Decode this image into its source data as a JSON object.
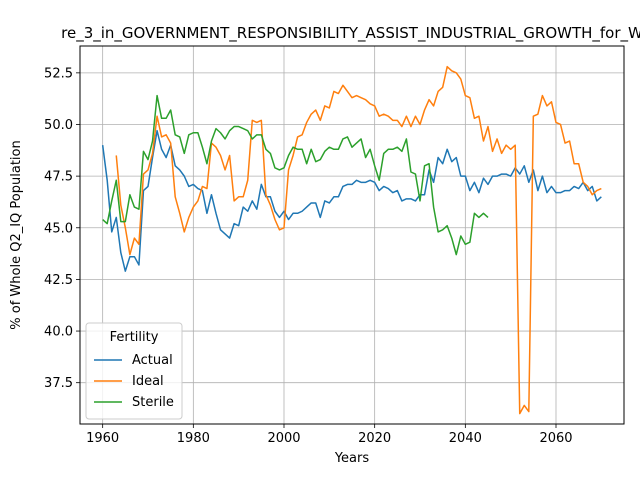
{
  "chart_data": {
    "type": "line",
    "title": "re_3_in_GOVERNMENT_RESPONSIBILITY_ASSIST_INDUSTRIAL_GROWTH_for_W",
    "xlabel": "Years",
    "ylabel": "% of Whole Q2_IQ Population",
    "xlim": [
      1955,
      2075
    ],
    "ylim": [
      35.5,
      53.8
    ],
    "xticks": [
      "1960",
      "1980",
      "2000",
      "2020",
      "2040",
      "2060"
    ],
    "yticks": [
      "37.5",
      "40.0",
      "42.5",
      "45.0",
      "47.5",
      "50.0",
      "52.5"
    ],
    "grid": true,
    "legend": {
      "title": "Fertility",
      "placement": "lower-left"
    },
    "series": [
      {
        "name": "Actual",
        "color": "#1f77b4",
        "points": [
          [
            1960,
            49.0
          ],
          [
            1961,
            47.3
          ],
          [
            1962,
            44.8
          ],
          [
            1963,
            45.5
          ],
          [
            1964,
            43.8
          ],
          [
            1965,
            42.9
          ],
          [
            1966,
            43.6
          ],
          [
            1967,
            43.6
          ],
          [
            1968,
            43.2
          ],
          [
            1969,
            46.8
          ],
          [
            1970,
            47.0
          ],
          [
            1971,
            48.4
          ],
          [
            1972,
            49.7
          ],
          [
            1973,
            48.8
          ],
          [
            1974,
            48.4
          ],
          [
            1975,
            49.0
          ],
          [
            1976,
            48.0
          ],
          [
            1977,
            47.8
          ],
          [
            1978,
            47.5
          ],
          [
            1979,
            47.0
          ],
          [
            1980,
            47.1
          ],
          [
            1981,
            46.9
          ],
          [
            1982,
            46.8
          ],
          [
            1983,
            45.7
          ],
          [
            1984,
            46.6
          ],
          [
            1985,
            45.7
          ],
          [
            1986,
            44.9
          ],
          [
            1987,
            44.7
          ],
          [
            1988,
            44.5
          ],
          [
            1989,
            45.2
          ],
          [
            1990,
            45.1
          ],
          [
            1991,
            46.0
          ],
          [
            1992,
            45.8
          ],
          [
            1993,
            46.3
          ],
          [
            1994,
            45.9
          ],
          [
            1995,
            47.1
          ],
          [
            1996,
            46.5
          ],
          [
            1997,
            46.5
          ],
          [
            1998,
            45.8
          ],
          [
            1999,
            45.5
          ],
          [
            2000,
            45.8
          ],
          [
            2001,
            45.4
          ],
          [
            2002,
            45.7
          ],
          [
            2003,
            45.7
          ],
          [
            2004,
            45.8
          ],
          [
            2005,
            46.0
          ],
          [
            2006,
            46.2
          ],
          [
            2007,
            46.2
          ],
          [
            2008,
            45.5
          ],
          [
            2009,
            46.3
          ],
          [
            2010,
            46.2
          ],
          [
            2011,
            46.5
          ],
          [
            2012,
            46.5
          ],
          [
            2013,
            47.0
          ],
          [
            2014,
            47.1
          ],
          [
            2015,
            47.1
          ],
          [
            2016,
            47.3
          ],
          [
            2017,
            47.2
          ],
          [
            2018,
            47.2
          ],
          [
            2019,
            47.3
          ],
          [
            2020,
            47.2
          ],
          [
            2021,
            46.8
          ],
          [
            2022,
            47.0
          ],
          [
            2023,
            46.9
          ],
          [
            2024,
            46.7
          ],
          [
            2025,
            46.8
          ],
          [
            2026,
            46.3
          ],
          [
            2027,
            46.4
          ],
          [
            2028,
            46.4
          ],
          [
            2029,
            46.3
          ],
          [
            2030,
            46.6
          ],
          [
            2031,
            46.6
          ],
          [
            2032,
            47.8
          ],
          [
            2033,
            47.2
          ],
          [
            2034,
            48.4
          ],
          [
            2035,
            48.1
          ],
          [
            2036,
            48.8
          ],
          [
            2037,
            48.2
          ],
          [
            2038,
            48.4
          ],
          [
            2039,
            47.5
          ],
          [
            2040,
            47.5
          ],
          [
            2041,
            46.8
          ],
          [
            2042,
            47.2
          ],
          [
            2043,
            46.7
          ],
          [
            2044,
            47.4
          ],
          [
            2045,
            47.1
          ],
          [
            2046,
            47.5
          ],
          [
            2047,
            47.5
          ],
          [
            2048,
            47.6
          ],
          [
            2049,
            47.6
          ],
          [
            2050,
            47.5
          ],
          [
            2051,
            47.9
          ],
          [
            2052,
            47.6
          ],
          [
            2053,
            48.0
          ],
          [
            2054,
            47.2
          ],
          [
            2055,
            47.8
          ],
          [
            2056,
            46.8
          ],
          [
            2057,
            47.5
          ],
          [
            2058,
            46.7
          ],
          [
            2059,
            47.0
          ],
          [
            2060,
            46.7
          ],
          [
            2061,
            46.7
          ],
          [
            2062,
            46.8
          ],
          [
            2063,
            46.8
          ],
          [
            2064,
            47.0
          ],
          [
            2065,
            46.9
          ],
          [
            2066,
            47.2
          ],
          [
            2067,
            46.8
          ],
          [
            2068,
            47.0
          ],
          [
            2069,
            46.3
          ],
          [
            2070,
            46.5
          ]
        ]
      },
      {
        "name": "Ideal",
        "color": "#ff7f0e",
        "points": [
          [
            1963,
            48.5
          ],
          [
            1964,
            46.1
          ],
          [
            1965,
            45.0
          ],
          [
            1966,
            43.7
          ],
          [
            1967,
            44.5
          ],
          [
            1968,
            44.2
          ],
          [
            1969,
            47.6
          ],
          [
            1970,
            47.8
          ],
          [
            1971,
            48.6
          ],
          [
            1972,
            50.4
          ],
          [
            1973,
            49.4
          ],
          [
            1974,
            49.5
          ],
          [
            1975,
            49.1
          ],
          [
            1976,
            46.5
          ],
          [
            1977,
            45.7
          ],
          [
            1978,
            44.8
          ],
          [
            1979,
            45.5
          ],
          [
            1980,
            46.0
          ],
          [
            1981,
            46.3
          ],
          [
            1982,
            47.0
          ],
          [
            1983,
            46.9
          ],
          [
            1984,
            49.1
          ],
          [
            1985,
            48.9
          ],
          [
            1986,
            48.5
          ],
          [
            1987,
            47.8
          ],
          [
            1988,
            48.5
          ],
          [
            1989,
            46.3
          ],
          [
            1990,
            46.5
          ],
          [
            1991,
            46.5
          ],
          [
            1992,
            47.3
          ],
          [
            1993,
            50.2
          ],
          [
            1994,
            50.1
          ],
          [
            1995,
            50.2
          ],
          [
            1996,
            46.6
          ],
          [
            1997,
            46.1
          ],
          [
            1998,
            45.4
          ],
          [
            1999,
            44.9
          ],
          [
            2000,
            45.0
          ],
          [
            2001,
            47.8
          ],
          [
            2002,
            48.5
          ],
          [
            2003,
            49.4
          ],
          [
            2004,
            49.5
          ],
          [
            2005,
            50.1
          ],
          [
            2006,
            50.5
          ],
          [
            2007,
            50.7
          ],
          [
            2008,
            50.2
          ],
          [
            2009,
            50.9
          ],
          [
            2010,
            50.8
          ],
          [
            2011,
            51.6
          ],
          [
            2012,
            51.5
          ],
          [
            2013,
            51.9
          ],
          [
            2014,
            51.6
          ],
          [
            2015,
            51.3
          ],
          [
            2016,
            51.4
          ],
          [
            2017,
            51.3
          ],
          [
            2018,
            51.2
          ],
          [
            2019,
            51.0
          ],
          [
            2020,
            50.9
          ],
          [
            2021,
            50.4
          ],
          [
            2022,
            50.5
          ],
          [
            2023,
            50.4
          ],
          [
            2024,
            50.2
          ],
          [
            2025,
            50.2
          ],
          [
            2026,
            49.9
          ],
          [
            2027,
            50.4
          ],
          [
            2028,
            49.9
          ],
          [
            2029,
            50.4
          ],
          [
            2030,
            50.0
          ],
          [
            2031,
            50.7
          ],
          [
            2032,
            51.2
          ],
          [
            2033,
            50.9
          ],
          [
            2034,
            51.6
          ],
          [
            2035,
            51.8
          ],
          [
            2036,
            52.8
          ],
          [
            2037,
            52.6
          ],
          [
            2038,
            52.5
          ],
          [
            2039,
            52.2
          ],
          [
            2040,
            51.4
          ],
          [
            2041,
            51.3
          ],
          [
            2042,
            50.3
          ],
          [
            2043,
            50.4
          ],
          [
            2044,
            49.2
          ],
          [
            2045,
            49.9
          ],
          [
            2046,
            48.7
          ],
          [
            2047,
            49.3
          ],
          [
            2048,
            48.6
          ],
          [
            2049,
            49.0
          ],
          [
            2050,
            48.8
          ],
          [
            2051,
            49.0
          ],
          [
            2052,
            36.0
          ],
          [
            2053,
            36.4
          ],
          [
            2054,
            36.1
          ],
          [
            2055,
            50.4
          ],
          [
            2056,
            50.5
          ],
          [
            2057,
            51.4
          ],
          [
            2058,
            50.9
          ],
          [
            2059,
            51.1
          ],
          [
            2060,
            50.1
          ],
          [
            2061,
            50.0
          ],
          [
            2062,
            49.1
          ],
          [
            2063,
            49.2
          ],
          [
            2064,
            48.1
          ],
          [
            2065,
            48.1
          ],
          [
            2066,
            47.2
          ],
          [
            2067,
            47.0
          ],
          [
            2068,
            46.6
          ],
          [
            2069,
            46.8
          ],
          [
            2070,
            46.9
          ]
        ]
      },
      {
        "name": "Sterile",
        "color": "#2ca02c",
        "points": [
          [
            1960,
            45.4
          ],
          [
            1961,
            45.2
          ],
          [
            1962,
            46.3
          ],
          [
            1963,
            47.3
          ],
          [
            1964,
            45.3
          ],
          [
            1965,
            45.3
          ],
          [
            1966,
            46.6
          ],
          [
            1967,
            46.0
          ],
          [
            1968,
            45.9
          ],
          [
            1969,
            48.7
          ],
          [
            1970,
            48.3
          ],
          [
            1971,
            49.2
          ],
          [
            1972,
            51.4
          ],
          [
            1973,
            50.3
          ],
          [
            1974,
            50.3
          ],
          [
            1975,
            50.7
          ],
          [
            1976,
            49.5
          ],
          [
            1977,
            49.4
          ],
          [
            1978,
            48.6
          ],
          [
            1979,
            49.5
          ],
          [
            1980,
            49.6
          ],
          [
            1981,
            49.6
          ],
          [
            1982,
            48.9
          ],
          [
            1983,
            48.1
          ],
          [
            1984,
            49.2
          ],
          [
            1985,
            49.8
          ],
          [
            1986,
            49.6
          ],
          [
            1987,
            49.3
          ],
          [
            1988,
            49.7
          ],
          [
            1989,
            49.9
          ],
          [
            1990,
            49.9
          ],
          [
            1991,
            49.8
          ],
          [
            1992,
            49.7
          ],
          [
            1993,
            49.3
          ],
          [
            1994,
            49.5
          ],
          [
            1995,
            49.5
          ],
          [
            1996,
            48.8
          ],
          [
            1997,
            48.6
          ],
          [
            1998,
            47.9
          ],
          [
            1999,
            47.8
          ],
          [
            2000,
            47.9
          ],
          [
            2001,
            48.5
          ],
          [
            2002,
            48.9
          ],
          [
            2003,
            48.8
          ],
          [
            2004,
            48.8
          ],
          [
            2005,
            48.1
          ],
          [
            2006,
            48.8
          ],
          [
            2007,
            48.2
          ],
          [
            2008,
            48.3
          ],
          [
            2009,
            48.7
          ],
          [
            2010,
            48.9
          ],
          [
            2011,
            48.8
          ],
          [
            2012,
            48.8
          ],
          [
            2013,
            49.3
          ],
          [
            2014,
            49.4
          ],
          [
            2015,
            48.9
          ],
          [
            2016,
            49.1
          ],
          [
            2017,
            49.3
          ],
          [
            2018,
            48.4
          ],
          [
            2019,
            48.8
          ],
          [
            2020,
            48.0
          ],
          [
            2021,
            47.3
          ],
          [
            2022,
            48.6
          ],
          [
            2023,
            48.8
          ],
          [
            2024,
            48.8
          ],
          [
            2025,
            48.9
          ],
          [
            2026,
            48.7
          ],
          [
            2027,
            49.3
          ],
          [
            2028,
            47.7
          ],
          [
            2029,
            47.6
          ],
          [
            2030,
            46.3
          ],
          [
            2031,
            48.0
          ],
          [
            2032,
            48.1
          ],
          [
            2033,
            46.0
          ],
          [
            2034,
            44.8
          ],
          [
            2035,
            44.9
          ],
          [
            2036,
            45.1
          ],
          [
            2037,
            44.5
          ],
          [
            2038,
            43.7
          ],
          [
            2039,
            44.6
          ],
          [
            2040,
            44.2
          ],
          [
            2041,
            44.3
          ],
          [
            2042,
            45.7
          ],
          [
            2043,
            45.5
          ],
          [
            2044,
            45.7
          ],
          [
            2045,
            45.5
          ]
        ]
      }
    ]
  }
}
